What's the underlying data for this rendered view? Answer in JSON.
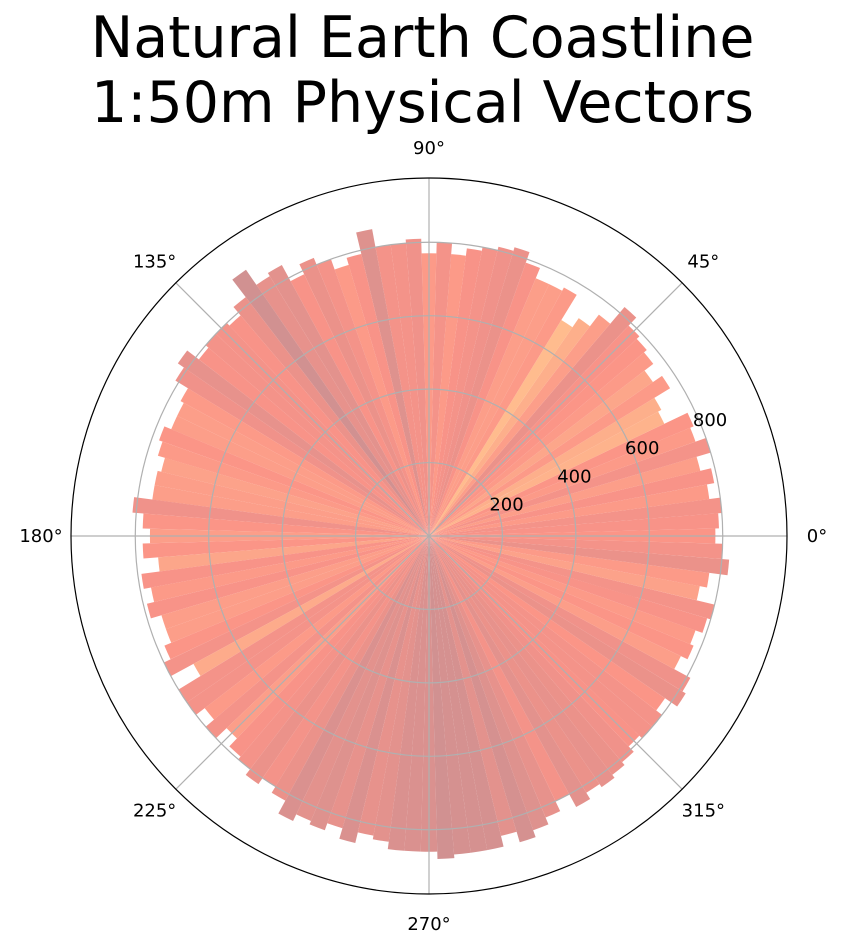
{
  "chart_data": {
    "type": "bar",
    "projection": "polar",
    "title_lines": [
      "Natural Earth Coastline",
      "1:50m Physical Vectors"
    ],
    "angle_tick_labels": [
      "0°",
      "45°",
      "90°",
      "135°",
      "180°",
      "225°",
      "270°",
      "315°"
    ],
    "angle_ticks_deg": [
      0,
      45,
      90,
      135,
      180,
      225,
      270,
      315
    ],
    "radial_tick_labels": [
      "200",
      "400",
      "600",
      "800"
    ],
    "radial_ticks": [
      200,
      400,
      600,
      800
    ],
    "rlim": [
      0,
      975
    ],
    "grid": true,
    "bin_width_deg": 3,
    "bin_centers_deg": [
      0,
      3,
      6,
      9,
      12,
      15,
      18,
      21,
      24,
      27,
      30,
      33,
      36,
      39,
      42,
      45,
      48,
      51,
      54,
      57,
      60,
      63,
      66,
      69,
      72,
      75,
      78,
      81,
      84,
      87,
      90,
      93,
      96,
      99,
      102,
      105,
      108,
      111,
      114,
      117,
      120,
      123,
      126,
      129,
      132,
      135,
      138,
      141,
      144,
      147,
      150,
      153,
      156,
      159,
      162,
      165,
      168,
      171,
      174,
      177,
      180,
      183,
      186,
      189,
      192,
      195,
      198,
      201,
      204,
      207,
      210,
      213,
      216,
      219,
      222,
      225,
      228,
      231,
      234,
      237,
      240,
      243,
      246,
      249,
      252,
      255,
      258,
      261,
      264,
      267,
      270,
      273,
      276,
      279,
      282,
      285,
      288,
      291,
      294,
      297,
      300,
      303,
      306,
      309,
      312,
      315,
      318,
      321,
      324,
      327,
      330,
      333,
      336,
      339,
      342,
      345,
      348,
      351,
      354,
      357
    ],
    "values": [
      780,
      790,
      800,
      770,
      790,
      760,
      800,
      770,
      780,
      710,
      720,
      770,
      740,
      770,
      780,
      790,
      820,
      760,
      720,
      690,
      770,
      760,
      760,
      790,
      820,
      810,
      800,
      790,
      770,
      800,
      770,
      810,
      800,
      800,
      850,
      790,
      770,
      800,
      820,
      790,
      840,
      830,
      880,
      820,
      790,
      800,
      800,
      790,
      830,
      810,
      770,
      760,
      760,
      780,
      770,
      750,
      760,
      760,
      810,
      780,
      760,
      780,
      740,
      790,
      770,
      790,
      760,
      760,
      780,
      800,
      730,
      800,
      800,
      770,
      800,
      760,
      790,
      800,
      820,
      800,
      820,
      860,
      840,
      850,
      830,
      860,
      830,
      840,
      860,
      860,
      860,
      880,
      870,
      870,
      870,
      840,
      870,
      850,
      830,
      800,
      840,
      820,
      830,
      820,
      810,
      790,
      800,
      800,
      780,
      820,
      810,
      760,
      780,
      770,
      790,
      800,
      750,
      770,
      820,
      800
    ],
    "series": [
      {
        "values_ref": "values",
        "colormap": "warm (orange to rose)",
        "alpha": 0.85
      }
    ],
    "colors": {
      "low": "#FFB07A",
      "mid": "#FA8072",
      "high": "#C97E7E",
      "grid": "#b0b0b0",
      "axis": "#000000"
    }
  }
}
